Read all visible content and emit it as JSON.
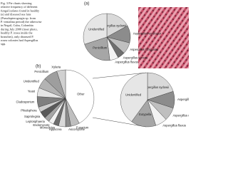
{
  "caption": [
    "Fig. 3 Pie charts showing",
    "relative frequency of different",
    "fungal isolates found in healthy",
    "(a) and diseased sea fans",
    "(Pseudopterogorgia sp. from",
    "P. ventalina period) the otherwise",
    "in Negril, Cuba, Colombia",
    "during July 2000 (inset photo,",
    "healthy P. rosea inside the",
    "branches), only diseased P.",
    "rosea colonies had Aspergillus",
    "spp."
  ],
  "chart_data": [
    {
      "type": "pie",
      "panel": "(a)",
      "categories": [
        "Aspergillus sydowii",
        "Aspergillus versicolor",
        "Aspergillus fumigatus",
        "Aspergillus terreus",
        "Aspergillus flavus",
        "Penicillium",
        "Unidentified"
      ],
      "values": [
        17,
        12,
        8,
        5,
        6,
        22,
        30
      ],
      "colors": [
        "#d9d9d9",
        "#8c8c8c",
        "#bfbfbf",
        "#6e6e6e",
        "#f2f2f2",
        "#a6a6a6",
        "#e6e6e6"
      ]
    },
    {
      "type": "pie",
      "panel": "(b)",
      "categories": [
        "Other",
        "Fusarium",
        "Ascomycete",
        "Hypocrea",
        "Monodictys",
        "Endomycete",
        "Leptosphaeria",
        "Saprolegnia",
        "Phialophora",
        "Cladosporium",
        "Yeast",
        "Unidentified",
        "Penicillium",
        "Xylaria"
      ],
      "values": [
        42,
        5,
        3,
        4,
        3,
        3,
        3,
        4,
        3,
        6,
        5,
        6,
        8,
        5
      ],
      "colors": [
        "#ffffff",
        "#bfbfbf",
        "#8c8c8c",
        "#d9d9d9",
        "#6e6e6e",
        "#f2f2f2",
        "#a6a6a6",
        "#595959",
        "#cccccc",
        "#7f7f7f",
        "#e6e6e6",
        "#b3b3b3",
        "#9e9e9e",
        "#d0d0d0"
      ]
    },
    {
      "type": "pie",
      "categories": [
        "Aspergillus sydowii",
        "Aspergillus versicolor",
        "Aspergillus ustus",
        "Aspergillus flavus",
        "Eutypella",
        "Unidentified"
      ],
      "values": [
        20,
        10,
        8,
        7,
        15,
        40
      ],
      "colors": [
        "#d9d9d9",
        "#8c8c8c",
        "#bfbfbf",
        "#f2f2f2",
        "#a6a6a6",
        "#e6e6e6"
      ]
    }
  ]
}
